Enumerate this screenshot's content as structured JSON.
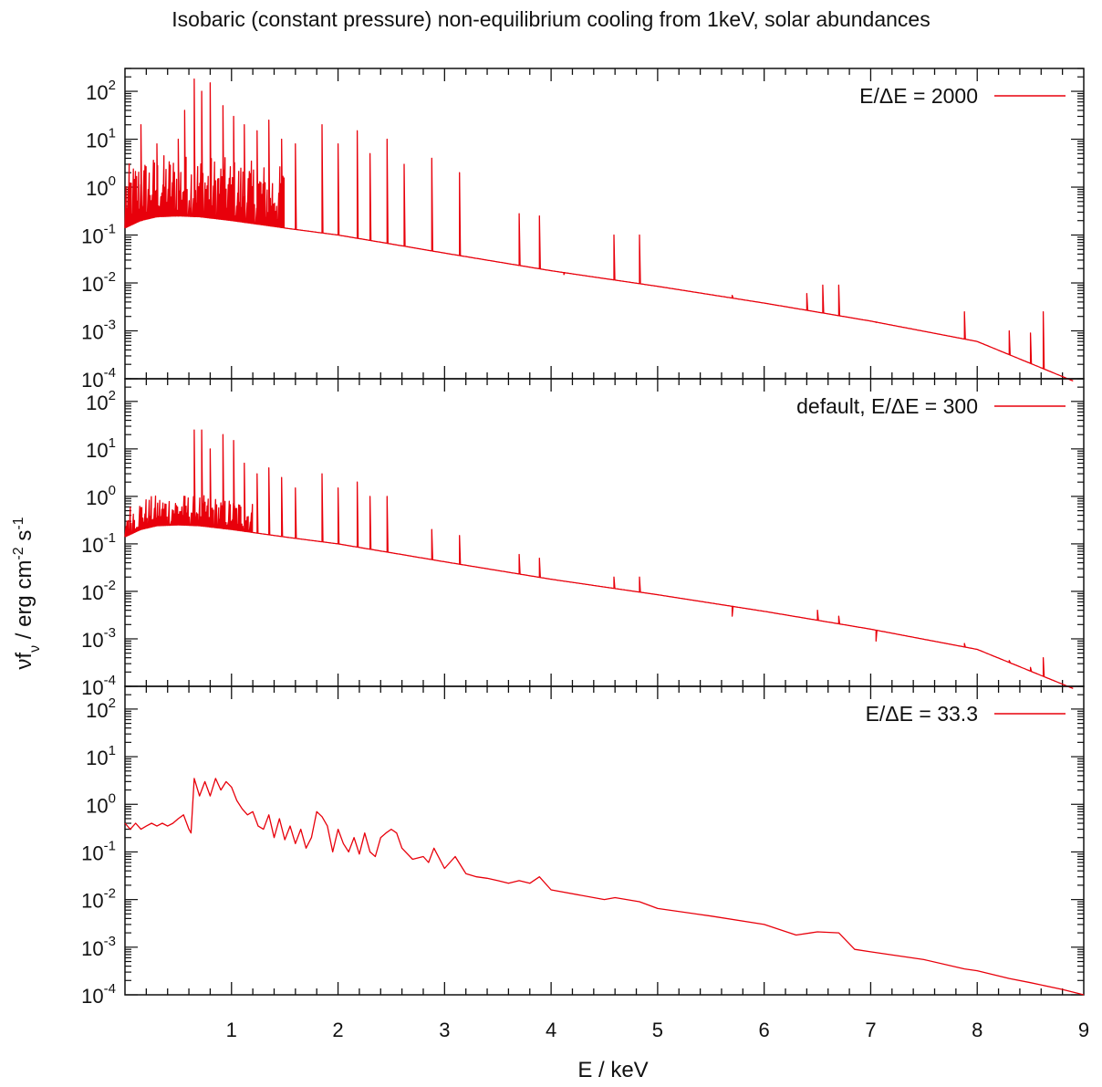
{
  "figure": {
    "title": "Isobaric (constant pressure) non-equilibrium cooling from 1keV, solar abundances",
    "xlabel": "E / keV",
    "ylabel": "νf_ν / erg cm^-2 s^-1",
    "x_ticks": [
      "1",
      "2",
      "3",
      "4",
      "5",
      "6",
      "7",
      "8",
      "9"
    ],
    "y_ticks": [
      {
        "base": "10",
        "exp": "2"
      },
      {
        "base": "10",
        "exp": "1"
      },
      {
        "base": "10",
        "exp": "0"
      },
      {
        "base": "10",
        "exp": "-1"
      },
      {
        "base": "10",
        "exp": "-2"
      },
      {
        "base": "10",
        "exp": "-3"
      },
      {
        "base": "10",
        "exp": "-4"
      }
    ],
    "line_color": "#e8000b"
  },
  "chart_data": [
    {
      "type": "line",
      "legend": "E/ΔE = 2000",
      "x_range": [
        0.0,
        9.0
      ],
      "y_range": [
        0.0001,
        300
      ],
      "y_scale": "log",
      "grid": false,
      "legend_position": "top-right",
      "continuum": [
        [
          0.0,
          0.14
        ],
        [
          0.15,
          0.2
        ],
        [
          0.3,
          0.24
        ],
        [
          0.5,
          0.25
        ],
        [
          0.7,
          0.24
        ],
        [
          1.0,
          0.2
        ],
        [
          1.5,
          0.14
        ],
        [
          2.0,
          0.1
        ],
        [
          2.5,
          0.065
        ],
        [
          3.0,
          0.042
        ],
        [
          4.0,
          0.018
        ],
        [
          5.0,
          0.0085
        ],
        [
          6.0,
          0.0038
        ],
        [
          7.0,
          0.0016
        ],
        [
          8.0,
          0.0006
        ],
        [
          8.9,
          9e-05
        ]
      ],
      "forest": [
        0.0,
        1.5
      ],
      "lines": [
        [
          0.15,
          20
        ],
        [
          0.3,
          8
        ],
        [
          0.5,
          10
        ],
        [
          0.56,
          40
        ],
        [
          0.65,
          180
        ],
        [
          0.72,
          100
        ],
        [
          0.8,
          150
        ],
        [
          0.92,
          50
        ],
        [
          1.02,
          30
        ],
        [
          1.12,
          20
        ],
        [
          1.24,
          15
        ],
        [
          1.35,
          25
        ],
        [
          1.47,
          10
        ],
        [
          1.6,
          8
        ],
        [
          1.85,
          20
        ],
        [
          2.0,
          8
        ],
        [
          2.18,
          15
        ],
        [
          2.3,
          5
        ],
        [
          2.46,
          10
        ],
        [
          2.62,
          3
        ],
        [
          2.88,
          4
        ],
        [
          3.14,
          2
        ],
        [
          3.7,
          0.28
        ],
        [
          3.89,
          0.25
        ],
        [
          4.12,
          0.015
        ],
        [
          4.59,
          0.1
        ],
        [
          4.83,
          0.1
        ],
        [
          5.7,
          0.0055
        ],
        [
          6.4,
          0.006
        ],
        [
          6.55,
          0.009
        ],
        [
          6.7,
          0.009
        ],
        [
          7.05,
          0.0015
        ],
        [
          7.88,
          0.0025
        ],
        [
          8.3,
          0.001
        ],
        [
          8.5,
          0.0009
        ],
        [
          8.62,
          0.0025
        ]
      ]
    },
    {
      "type": "line",
      "legend": "default, E/ΔE = 300",
      "x_range": [
        0.0,
        9.0
      ],
      "y_range": [
        0.0001,
        300
      ],
      "y_scale": "log",
      "grid": false,
      "legend_position": "top-right",
      "continuum": [
        [
          0.0,
          0.14
        ],
        [
          0.15,
          0.2
        ],
        [
          0.3,
          0.24
        ],
        [
          0.5,
          0.25
        ],
        [
          0.7,
          0.24
        ],
        [
          1.0,
          0.2
        ],
        [
          1.5,
          0.14
        ],
        [
          2.0,
          0.1
        ],
        [
          2.5,
          0.065
        ],
        [
          3.0,
          0.042
        ],
        [
          4.0,
          0.018
        ],
        [
          5.0,
          0.0085
        ],
        [
          6.0,
          0.0038
        ],
        [
          7.0,
          0.0016
        ],
        [
          8.0,
          0.0006
        ],
        [
          8.9,
          9e-05
        ]
      ],
      "forest": [
        0.0,
        1.2
      ],
      "lines": [
        [
          0.65,
          25
        ],
        [
          0.72,
          25
        ],
        [
          0.8,
          10
        ],
        [
          0.92,
          20
        ],
        [
          1.02,
          15
        ],
        [
          1.12,
          5
        ],
        [
          1.24,
          3
        ],
        [
          1.35,
          4
        ],
        [
          1.47,
          2.5
        ],
        [
          1.6,
          1.5
        ],
        [
          1.85,
          3
        ],
        [
          2.0,
          1.5
        ],
        [
          2.18,
          2
        ],
        [
          2.3,
          1
        ],
        [
          2.46,
          1
        ],
        [
          2.88,
          0.2
        ],
        [
          3.14,
          0.15
        ],
        [
          3.7,
          0.06
        ],
        [
          3.89,
          0.05
        ],
        [
          4.59,
          0.02
        ],
        [
          4.83,
          0.02
        ],
        [
          5.7,
          0.003
        ],
        [
          6.5,
          0.004
        ],
        [
          6.7,
          0.003
        ],
        [
          7.05,
          0.0009
        ],
        [
          7.88,
          0.0008
        ],
        [
          8.3,
          0.00035
        ],
        [
          8.5,
          0.00025
        ],
        [
          8.62,
          0.0004
        ]
      ]
    },
    {
      "type": "line",
      "legend": "E/ΔE = 33.3",
      "x_range": [
        0.0,
        9.0
      ],
      "y_range": [
        0.0001,
        300
      ],
      "y_scale": "log",
      "grid": false,
      "legend_position": "top-right",
      "points": [
        [
          0.0,
          0.4
        ],
        [
          0.05,
          0.3
        ],
        [
          0.1,
          0.4
        ],
        [
          0.15,
          0.3
        ],
        [
          0.2,
          0.35
        ],
        [
          0.25,
          0.4
        ],
        [
          0.3,
          0.35
        ],
        [
          0.35,
          0.4
        ],
        [
          0.4,
          0.35
        ],
        [
          0.45,
          0.4
        ],
        [
          0.5,
          0.5
        ],
        [
          0.55,
          0.6
        ],
        [
          0.6,
          0.3
        ],
        [
          0.62,
          0.25
        ],
        [
          0.65,
          3.5
        ],
        [
          0.7,
          1.5
        ],
        [
          0.75,
          3
        ],
        [
          0.8,
          1.5
        ],
        [
          0.85,
          3.5
        ],
        [
          0.9,
          2
        ],
        [
          0.95,
          3
        ],
        [
          1.0,
          2.3
        ],
        [
          1.05,
          1.2
        ],
        [
          1.1,
          0.8
        ],
        [
          1.15,
          0.6
        ],
        [
          1.2,
          0.7
        ],
        [
          1.25,
          0.35
        ],
        [
          1.3,
          0.3
        ],
        [
          1.35,
          0.6
        ],
        [
          1.4,
          0.2
        ],
        [
          1.45,
          0.5
        ],
        [
          1.5,
          0.18
        ],
        [
          1.55,
          0.35
        ],
        [
          1.6,
          0.15
        ],
        [
          1.65,
          0.3
        ],
        [
          1.7,
          0.12
        ],
        [
          1.75,
          0.2
        ],
        [
          1.8,
          0.7
        ],
        [
          1.85,
          0.55
        ],
        [
          1.9,
          0.35
        ],
        [
          1.95,
          0.1
        ],
        [
          2.0,
          0.3
        ],
        [
          2.05,
          0.15
        ],
        [
          2.1,
          0.1
        ],
        [
          2.15,
          0.2
        ],
        [
          2.2,
          0.09
        ],
        [
          2.25,
          0.25
        ],
        [
          2.3,
          0.1
        ],
        [
          2.35,
          0.08
        ],
        [
          2.4,
          0.2
        ],
        [
          2.45,
          0.25
        ],
        [
          2.5,
          0.3
        ],
        [
          2.55,
          0.25
        ],
        [
          2.6,
          0.12
        ],
        [
          2.7,
          0.07
        ],
        [
          2.8,
          0.08
        ],
        [
          2.85,
          0.06
        ],
        [
          2.9,
          0.12
        ],
        [
          3.0,
          0.045
        ],
        [
          3.1,
          0.08
        ],
        [
          3.2,
          0.035
        ],
        [
          3.3,
          0.03
        ],
        [
          3.4,
          0.028
        ],
        [
          3.5,
          0.025
        ],
        [
          3.6,
          0.022
        ],
        [
          3.7,
          0.025
        ],
        [
          3.8,
          0.022
        ],
        [
          3.89,
          0.03
        ],
        [
          4.0,
          0.016
        ],
        [
          4.5,
          0.01
        ],
        [
          4.6,
          0.011
        ],
        [
          4.83,
          0.009
        ],
        [
          5.0,
          0.0065
        ],
        [
          5.5,
          0.0045
        ],
        [
          6.0,
          0.003
        ],
        [
          6.3,
          0.0018
        ],
        [
          6.5,
          0.0021
        ],
        [
          6.7,
          0.002
        ],
        [
          6.85,
          0.0009
        ],
        [
          7.0,
          0.0008
        ],
        [
          7.5,
          0.00055
        ],
        [
          7.88,
          0.00035
        ],
        [
          8.0,
          0.00032
        ],
        [
          8.3,
          0.00022
        ],
        [
          8.5,
          0.00018
        ],
        [
          8.8,
          0.00013
        ],
        [
          9.0,
          0.0001
        ]
      ]
    }
  ]
}
